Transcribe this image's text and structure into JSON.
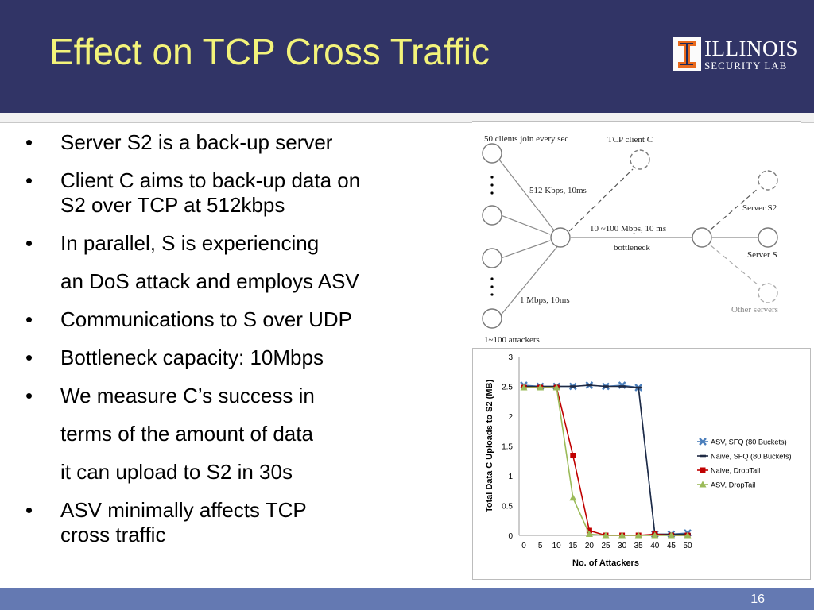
{
  "slide": {
    "title": "Effect on TCP Cross Traffic",
    "page_number": "16"
  },
  "logo": {
    "wordmark": "ILLINOIS",
    "subtitle": "SECURITY LAB",
    "mark_glyph": "I"
  },
  "bullets": [
    {
      "type": "bullet",
      "symbol": "•",
      "lines": [
        "Server S2 is a back-up server"
      ]
    },
    {
      "type": "bullet",
      "symbol": "•",
      "lines": [
        "Client C aims to back-up data on",
        "S2 over TCP at 512kbps"
      ]
    },
    {
      "type": "bullet",
      "symbol": "•",
      "lines": [
        "In parallel, S is experiencing"
      ]
    },
    {
      "type": "continuation",
      "symbol": "",
      "lines": [
        "an DoS attack and employs ASV"
      ]
    },
    {
      "type": "bullet",
      "symbol": "•",
      "lines": [
        "Communications to S over UDP"
      ]
    },
    {
      "type": "bullet",
      "symbol": "•",
      "lines": [
        "Bottleneck capacity: 10Mbps"
      ]
    },
    {
      "type": "bullet",
      "symbol": "•",
      "lines": [
        "We measure C’s success in"
      ]
    },
    {
      "type": "continuation",
      "symbol": "",
      "lines": [
        "terms of the amount of data"
      ]
    },
    {
      "type": "continuation",
      "symbol": "",
      "lines": [
        "it can upload to S2 in 30s"
      ]
    },
    {
      "type": "bullet",
      "symbol": "•",
      "lines": [
        "ASV minimally affects TCP",
        "cross traffic"
      ]
    }
  ],
  "diagram": {
    "labels": {
      "clients_join": "50 clients join every sec",
      "tcp_client": "TCP client C",
      "link_512": "512 Kbps, 10ms",
      "bottleneck_speed": "10 ~100 Mbps, 10 ms",
      "bottleneck": "bottleneck",
      "link_1mbps": "1 Mbps, 10ms",
      "attackers": "1~100 attackers",
      "server_s2": "Server S2",
      "server_s": "Server S",
      "other_servers": "Other servers"
    },
    "colors": {
      "node": "#777777",
      "link": "#888888",
      "dashed_gray": "#aaaaaa"
    }
  },
  "chart_data": {
    "type": "line",
    "x": [
      0,
      5,
      10,
      15,
      20,
      25,
      30,
      35,
      40,
      45,
      50
    ],
    "xlabel": "No. of Attackers",
    "ylabel": "Total Data C Uploads to S2 (MB)",
    "xticks": [
      "0",
      "5",
      "10",
      "15",
      "20",
      "25",
      "30",
      "35",
      "40",
      "45",
      "50"
    ],
    "yticks": [
      "0",
      "0.5",
      "1",
      "1.5",
      "2",
      "2.5",
      "3"
    ],
    "ylim": [
      0,
      3
    ],
    "legend_position": "right",
    "grid": false,
    "series": [
      {
        "name": "ASV, SFQ (80 Buckets)",
        "values": [
          2.52,
          2.5,
          2.5,
          2.5,
          2.52,
          2.5,
          2.52,
          2.48,
          0.02,
          0.02,
          0.04
        ],
        "color": "#4a7ebb",
        "marker": "x"
      },
      {
        "name": "Naive, SFQ (80 Buckets)",
        "values": [
          2.5,
          2.5,
          2.5,
          2.5,
          2.52,
          2.5,
          2.5,
          2.48,
          0.02,
          0.02,
          0.02
        ],
        "color": "#1f2a44",
        "marker": "dash"
      },
      {
        "name": "Naive, DropTail",
        "values": [
          2.48,
          2.48,
          2.48,
          1.34,
          0.08,
          0.0,
          0.0,
          0.0,
          0.02,
          0.0,
          0.0
        ],
        "color": "#c00000",
        "marker": "square"
      },
      {
        "name": "ASV, DropTail",
        "values": [
          2.48,
          2.48,
          2.48,
          0.63,
          0.02,
          0.0,
          0.0,
          0.0,
          0.0,
          0.0,
          0.0
        ],
        "color": "#9bbb59",
        "marker": "triangle"
      }
    ]
  }
}
